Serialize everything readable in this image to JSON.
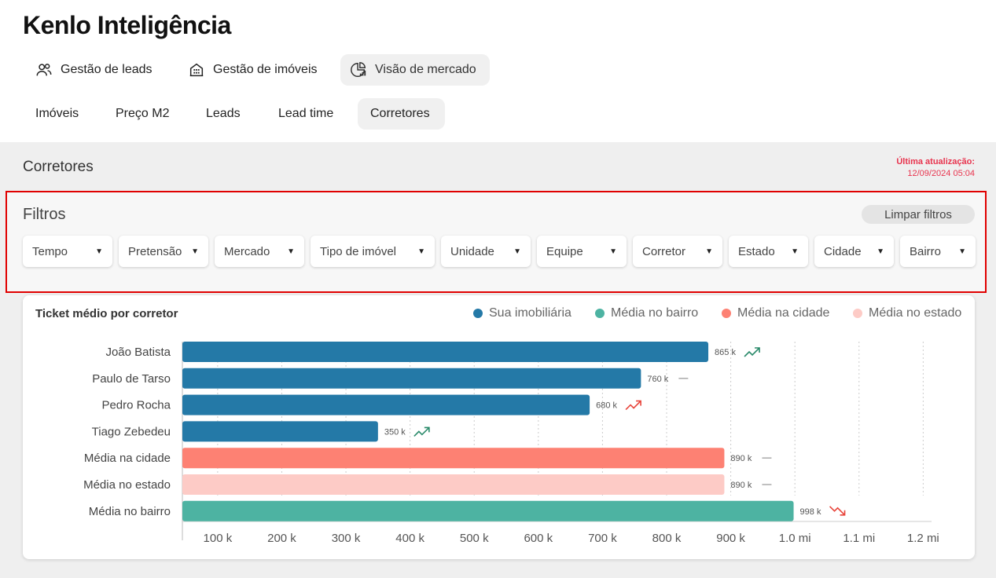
{
  "app": {
    "title": "Kenlo Inteligência"
  },
  "nav": {
    "tabs": [
      {
        "label": "Gestão de leads",
        "icon": "users-icon"
      },
      {
        "label": "Gestão de imóveis",
        "icon": "building-icon"
      },
      {
        "label": "Visão de mercado",
        "icon": "pie-chart-icon",
        "active": true
      }
    ]
  },
  "subnav": {
    "tabs": [
      {
        "label": "Imóveis"
      },
      {
        "label": "Preço M2"
      },
      {
        "label": "Leads"
      },
      {
        "label": "Lead time"
      },
      {
        "label": "Corretores",
        "active": true
      }
    ]
  },
  "section": {
    "title": "Corretores",
    "update_label": "Última atualização:",
    "update_value": "12/09/2024 05:04"
  },
  "filters": {
    "title": "Filtros",
    "clear_label": "Limpar filtros",
    "items": [
      "Tempo",
      "Pretensão",
      "Mercado",
      "Tipo de imóvel",
      "Unidade",
      "Equipe",
      "Corretor",
      "Estado",
      "Cidade",
      "Bairro"
    ]
  },
  "colors": {
    "sua_imobiliaria": "#2479a7",
    "media_bairro": "#4db3a2",
    "media_cidade": "#fd8173",
    "media_estado": "#fdcbc6",
    "trend_up": "#2a8a6a",
    "trend_up_red": "#e8443a",
    "trend_flat": "#aaaaaa",
    "trend_down": "#e8443a"
  },
  "chart_data": {
    "type": "bar",
    "orientation": "horizontal",
    "title": "Ticket médio por corretor",
    "legend": [
      {
        "name": "Sua imobiliária",
        "color": "#2479a7"
      },
      {
        "name": "Média no bairro",
        "color": "#4db3a2"
      },
      {
        "name": "Média na cidade",
        "color": "#fd8173"
      },
      {
        "name": "Média no estado",
        "color": "#fdcbc6"
      }
    ],
    "categories": [
      "João Batista",
      "Paulo de Tarso",
      "Pedro Rocha",
      "Tiago Zebedeu",
      "Média na cidade",
      "Média no estado",
      "Média no bairro"
    ],
    "values": [
      865,
      760,
      680,
      350,
      890,
      890,
      998
    ],
    "value_labels": [
      "865 k",
      "760 k",
      "680 k",
      "350 k",
      "890 k",
      "890 k",
      "998 k"
    ],
    "series_colors": [
      "#2479a7",
      "#2479a7",
      "#2479a7",
      "#2479a7",
      "#fd8173",
      "#fdcbc6",
      "#4db3a2"
    ],
    "trends": [
      "up-green",
      "flat",
      "up-red",
      "up-green",
      "flat",
      "flat",
      "down-red"
    ],
    "xticks": [
      100,
      200,
      300,
      400,
      500,
      600,
      700,
      800,
      900,
      1000,
      1100,
      1200
    ],
    "xtick_labels": [
      "100 k",
      "200 k",
      "300 k",
      "400 k",
      "500 k",
      "600 k",
      "700 k",
      "800 k",
      "900 k",
      "1.0 mi",
      "1.1 mi",
      "1.2 mi"
    ],
    "xlim": [
      45,
      1240
    ],
    "unit": "k (milhares)"
  }
}
